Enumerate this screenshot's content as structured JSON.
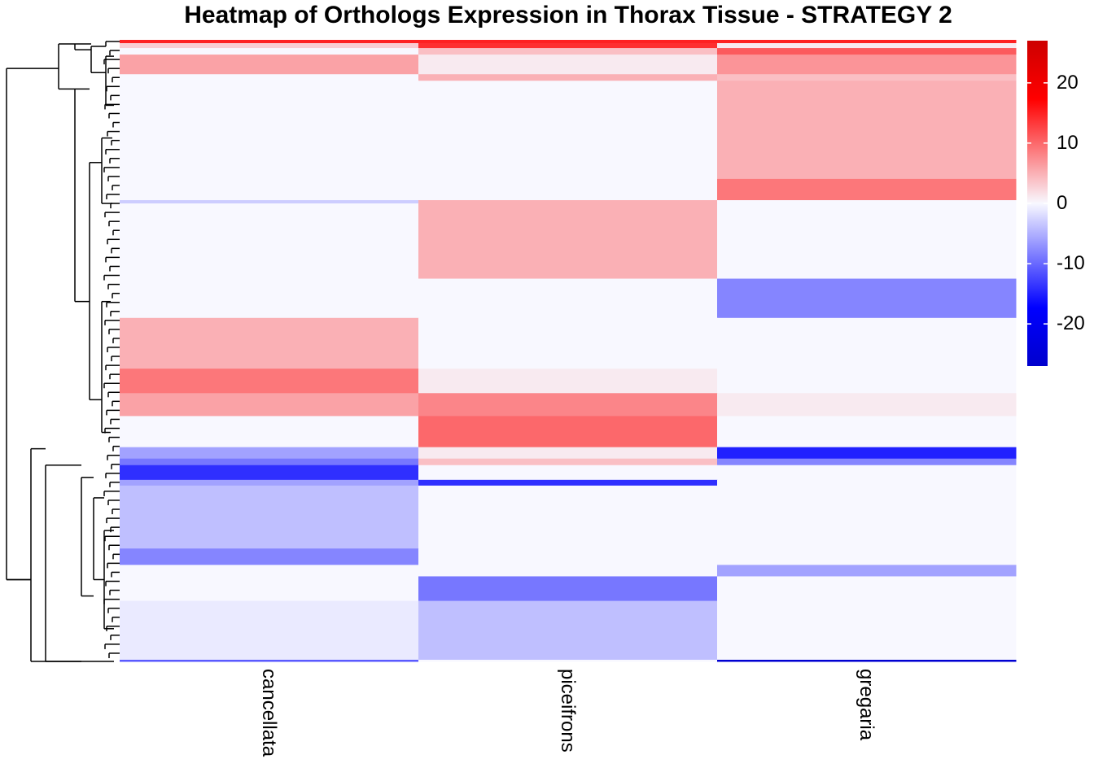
{
  "title": "Heatmap of Orthologs Expression in Thorax Tissue - STRATEGY 2",
  "chart_data": {
    "type": "heatmap",
    "title": "Heatmap of Orthologs Expression in Thorax Tissue - STRATEGY 2",
    "columns": [
      "cancellata",
      "piceifrons",
      "gregaria"
    ],
    "n_rows": 760,
    "row_dendrogram": true,
    "color_scale": {
      "min": -27,
      "max": 27,
      "low": "#0000cd",
      "mid_low": "#0000ff",
      "mid": "#f8f8ff",
      "mid_high": "#ff0000",
      "high": "#cd0000",
      "ticks": [
        20,
        10,
        0,
        -10,
        -20
      ]
    },
    "blocks": [
      {
        "rows": [
          0,
          4
        ],
        "values": [
          15,
          15,
          15
        ]
      },
      {
        "rows": [
          4,
          10
        ],
        "values": [
          3,
          14,
          1
        ]
      },
      {
        "rows": [
          10,
          18
        ],
        "values": [
          0,
          4,
          11
        ]
      },
      {
        "rows": [
          18,
          42
        ],
        "values": [
          6,
          1,
          7
        ]
      },
      {
        "rows": [
          42,
          50
        ],
        "values": [
          0,
          5,
          4
        ]
      },
      {
        "rows": [
          50,
          170
        ],
        "values": [
          0,
          0,
          5
        ]
      },
      {
        "rows": [
          170,
          196
        ],
        "values": [
          0,
          0,
          9
        ]
      },
      {
        "rows": [
          196,
          200
        ],
        "values": [
          -3,
          5,
          0
        ]
      },
      {
        "rows": [
          200,
          292
        ],
        "values": [
          0,
          5,
          0
        ]
      },
      {
        "rows": [
          292,
          340
        ],
        "values": [
          0,
          0,
          -8
        ]
      },
      {
        "rows": [
          340,
          402
        ],
        "values": [
          5,
          0,
          0
        ]
      },
      {
        "rows": [
          402,
          432
        ],
        "values": [
          9,
          1,
          0
        ]
      },
      {
        "rows": [
          432,
          460
        ],
        "values": [
          6,
          8,
          1
        ]
      },
      {
        "rows": [
          460,
          498
        ],
        "values": [
          0,
          10,
          0
        ]
      },
      {
        "rows": [
          498,
          512
        ],
        "values": [
          -6,
          1,
          -15
        ]
      },
      {
        "rows": [
          512,
          520
        ],
        "values": [
          -9,
          4,
          -8
        ]
      },
      {
        "rows": [
          520,
          538
        ],
        "values": [
          -14,
          0,
          0
        ]
      },
      {
        "rows": [
          538,
          545
        ],
        "values": [
          -6,
          -14,
          0
        ]
      },
      {
        "rows": [
          545,
          622
        ],
        "values": [
          -4,
          0,
          0
        ]
      },
      {
        "rows": [
          622,
          642
        ],
        "values": [
          -8,
          0,
          0
        ]
      },
      {
        "rows": [
          642,
          656
        ],
        "values": [
          0,
          0,
          -6
        ]
      },
      {
        "rows": [
          656,
          686
        ],
        "values": [
          0,
          -9,
          0
        ]
      },
      {
        "rows": [
          686,
          758
        ],
        "values": [
          -1,
          -4,
          0
        ]
      },
      {
        "rows": [
          758,
          760
        ],
        "values": [
          -11,
          0,
          -26
        ]
      }
    ]
  }
}
